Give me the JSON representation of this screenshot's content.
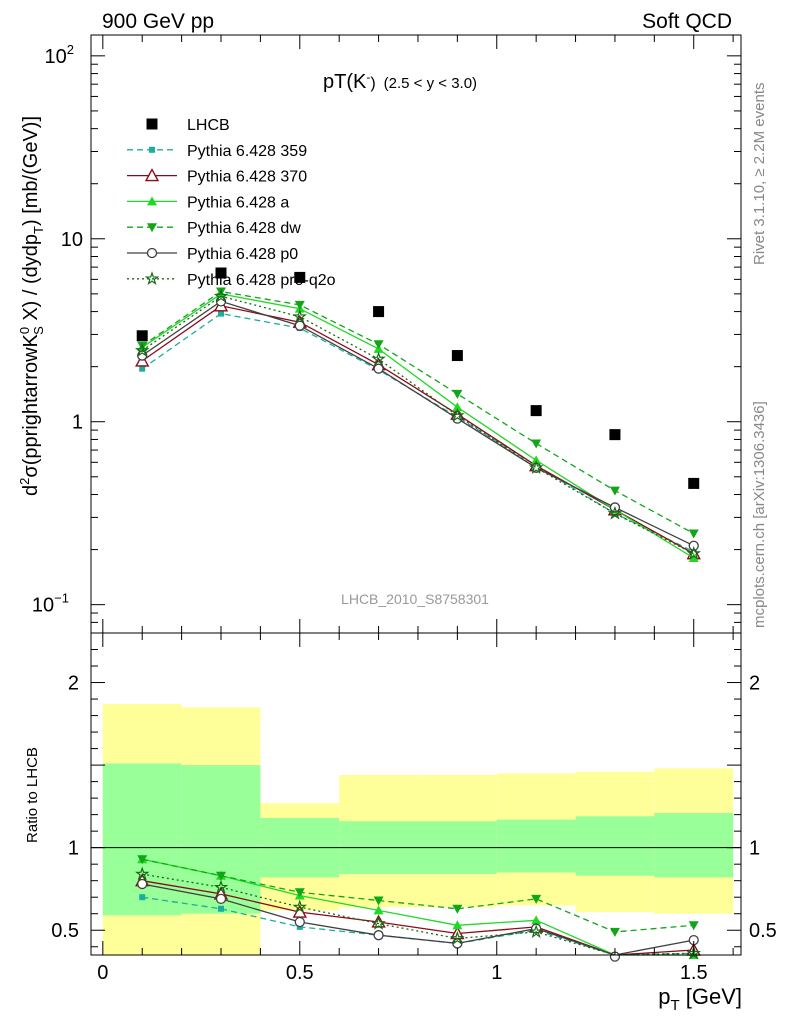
{
  "header": {
    "left": "900 GeV pp",
    "right": "Soft QCD"
  },
  "side_labels": {
    "top": "Rivet 3.1.10, ≥ 2.2M events",
    "bottom": "mcplots.cern.ch [arXiv:1306.3436]"
  },
  "chart_data": [
    {
      "type": "line",
      "panel": "main",
      "title_main": "pT(K",
      "title_sup": "-",
      "title_close": ")",
      "title_range": "(2.5 < y < 3.0)",
      "analysis_id": "LHCB_2010_S8758301",
      "ylabel": "d²σ(pprightarrowK⁰ₛ X) / (dydpₜ) [mb/(GeV)]",
      "ylabel_parts": [
        "d",
        "2",
        "σ(pprightarrowK",
        "0",
        "S",
        " X) / (dydp",
        "T",
        ") [mb/(GeV)]"
      ],
      "yscale": "log",
      "ylim": [
        0.07,
        130
      ],
      "xlim": [
        -0.03,
        1.62
      ],
      "yticks": [
        {
          "v": 0.1,
          "base": "10",
          "exp": "−1"
        },
        {
          "v": 1,
          "base": "1",
          "exp": ""
        },
        {
          "v": 10,
          "base": "10",
          "exp": ""
        },
        {
          "v": 100,
          "base": "10",
          "exp": "2"
        }
      ],
      "legend_placement": "top-left",
      "x": [
        0.1,
        0.3,
        0.5,
        0.7,
        0.9,
        1.1,
        1.3,
        1.5
      ],
      "series": [
        {
          "name": "LHCB",
          "color": "#000000",
          "marker": "square",
          "dash": "none",
          "values": [
            2.95,
            6.5,
            6.15,
            4.0,
            2.3,
            1.15,
            0.85,
            0.46
          ]
        },
        {
          "name": "Pythia 6.428 359",
          "color": "#1cae9c",
          "marker": "small-square",
          "dash": "6,4",
          "values": [
            1.95,
            3.9,
            3.25,
            1.92,
            1.06,
            0.575,
            0.315,
            0.195
          ]
        },
        {
          "name": "Pythia 6.428 370",
          "color": "#8b0a1a",
          "marker": "triangle-open",
          "dash": "none",
          "values": [
            2.15,
            4.3,
            3.5,
            2.05,
            1.1,
            0.575,
            0.33,
            0.19
          ]
        },
        {
          "name": "Pythia 6.428 a",
          "color": "#21d925",
          "marker": "triangle-filled",
          "dash": "none",
          "values": [
            2.55,
            5.0,
            4.15,
            2.5,
            1.2,
            0.615,
            0.33,
            0.18
          ]
        },
        {
          "name": "Pythia 6.428 dw",
          "color": "#10a618",
          "marker": "triangle-down",
          "dash": "6,4",
          "values": [
            2.6,
            5.15,
            4.35,
            2.65,
            1.42,
            0.76,
            0.42,
            0.245
          ]
        },
        {
          "name": "Pythia 6.428 p0",
          "color": "#404040",
          "marker": "circle-open",
          "dash": "none",
          "values": [
            2.3,
            4.55,
            3.35,
            1.95,
            1.04,
            0.56,
            0.34,
            0.21
          ]
        },
        {
          "name": "Pythia 6.428 pro-q2o",
          "color": "#146b14",
          "marker": "star",
          "dash": "2,3",
          "values": [
            2.45,
            4.85,
            3.75,
            2.2,
            1.08,
            0.56,
            0.315,
            0.19
          ]
        }
      ]
    },
    {
      "type": "line",
      "panel": "ratio",
      "ylabel": "Ratio to LHCB",
      "ylim": [
        0.35,
        2.3
      ],
      "xlim": [
        -0.03,
        1.62
      ],
      "xlabel_main": "p",
      "xlabel_sub": "T",
      "xlabel_unit": " [GeV]",
      "xticks": [
        {
          "v": 0,
          "label": "0"
        },
        {
          "v": 0.5,
          "label": "0.5"
        },
        {
          "v": 1,
          "label": "1"
        },
        {
          "v": 1.5,
          "label": "1.5"
        }
      ],
      "yticks": [
        {
          "v": 0.5,
          "label": "0.5"
        },
        {
          "v": 1,
          "label": "1"
        },
        {
          "v": 2,
          "label": "2"
        }
      ],
      "reference_line": 1,
      "bands": {
        "bin_edges": [
          0.0,
          0.2,
          0.4,
          0.6,
          0.8,
          1.0,
          1.2,
          1.4,
          1.6
        ],
        "outer_color": "#ffff99",
        "inner_color": "#99ff99",
        "outer": [
          [
            0.0,
            1.87
          ],
          [
            0.0,
            1.85
          ],
          [
            0.62,
            1.27
          ],
          [
            0.64,
            1.44
          ],
          [
            0.64,
            1.44
          ],
          [
            0.65,
            1.45
          ],
          [
            0.61,
            1.46
          ],
          [
            0.6,
            1.48
          ]
        ],
        "inner": [
          [
            0.59,
            1.51
          ],
          [
            0.6,
            1.5
          ],
          [
            0.82,
            1.18
          ],
          [
            0.84,
            1.16
          ],
          [
            0.84,
            1.16
          ],
          [
            0.85,
            1.17
          ],
          [
            0.83,
            1.19
          ],
          [
            0.82,
            1.21
          ]
        ]
      },
      "series": [
        {
          "name": "Pythia 6.428 359",
          "color": "#1cae9c",
          "marker": "small-square",
          "dash": "6,4",
          "values": [
            0.7,
            0.63,
            0.52,
            0.47,
            0.42,
            0.5,
            0.35,
            0.36
          ]
        },
        {
          "name": "Pythia 6.428 370",
          "color": "#8b0a1a",
          "marker": "triangle-open",
          "dash": "none",
          "values": [
            0.8,
            0.72,
            0.61,
            0.55,
            0.48,
            0.52,
            0.33,
            0.38
          ]
        },
        {
          "name": "Pythia 6.428 a",
          "color": "#21d925",
          "marker": "triangle-filled",
          "dash": "none",
          "values": [
            0.93,
            0.83,
            0.71,
            0.62,
            0.53,
            0.56,
            0.33,
            0.35
          ]
        },
        {
          "name": "Pythia 6.428 dw",
          "color": "#10a618",
          "marker": "triangle-down",
          "dash": "6,4",
          "values": [
            0.93,
            0.83,
            0.73,
            0.68,
            0.63,
            0.69,
            0.49,
            0.53
          ]
        },
        {
          "name": "Pythia 6.428 p0",
          "color": "#404040",
          "marker": "circle-open",
          "dash": "none",
          "values": [
            0.78,
            0.69,
            0.55,
            0.47,
            0.42,
            0.51,
            0.34,
            0.44
          ]
        },
        {
          "name": "Pythia 6.428 pro-q2o",
          "color": "#146b14",
          "marker": "star",
          "dash": "2,3",
          "values": [
            0.84,
            0.76,
            0.64,
            0.54,
            0.45,
            0.49,
            0.33,
            0.36
          ]
        }
      ]
    }
  ]
}
